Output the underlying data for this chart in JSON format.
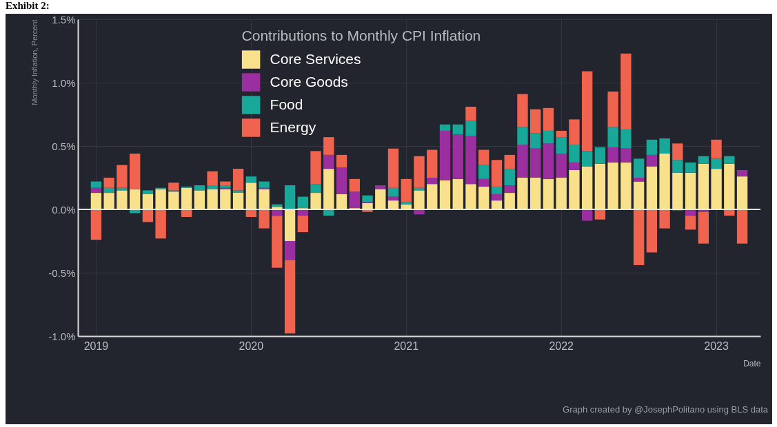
{
  "chart_data": {
    "type": "bar",
    "stacked": true,
    "legend_title": "Contributions to Monthly CPI Inflation",
    "ylabel": "Monthly Inflation, Percent",
    "xlabel": "Date",
    "annotations": [
      "Exhibit 2:",
      "Graph created by @JosephPolitano using BLS data"
    ],
    "categories": [
      "2019",
      null,
      null,
      null,
      null,
      null,
      null,
      null,
      null,
      null,
      null,
      null,
      "2020",
      null,
      null,
      null,
      null,
      null,
      null,
      null,
      null,
      null,
      null,
      null,
      "2021",
      null,
      null,
      null,
      null,
      null,
      null,
      null,
      null,
      null,
      null,
      null,
      "2022",
      null,
      null,
      null,
      null,
      null,
      null,
      null,
      null,
      null,
      null,
      null,
      "2023",
      null,
      null
    ],
    "series": [
      {
        "name": "Core Services",
        "color": "#f9e08a",
        "values": [
          0.13,
          0.13,
          0.15,
          0.16,
          0.12,
          0.16,
          0.14,
          0.17,
          0.15,
          0.16,
          0.16,
          0.13,
          0.21,
          0.16,
          0.02,
          -0.25,
          0.01,
          0.13,
          0.32,
          0.12,
          0.01,
          0.05,
          0.16,
          0.07,
          0.04,
          0.15,
          0.2,
          0.23,
          0.24,
          0.2,
          0.18,
          0.07,
          0.13,
          0.25,
          0.25,
          0.24,
          0.25,
          0.31,
          0.34,
          0.36,
          0.37,
          0.37,
          0.22,
          0.34,
          0.44,
          0.29,
          0.29,
          0.36,
          0.32,
          0.36,
          0.26
        ]
      },
      {
        "name": "Core Goods",
        "color": "#9b2fa0",
        "values": [
          0.04,
          0,
          0,
          0,
          0,
          0,
          0,
          0,
          0,
          0,
          0.01,
          0,
          0,
          0.01,
          -0.05,
          -0.15,
          -0.05,
          0,
          0.11,
          0.21,
          0.13,
          0.01,
          0.03,
          0.03,
          0,
          -0.04,
          0.05,
          0.39,
          0.35,
          0.38,
          0.06,
          0.05,
          0.06,
          0.26,
          0.23,
          0.28,
          0.19,
          0.06,
          -0.09,
          0,
          0.12,
          0.11,
          0.03,
          0.09,
          0,
          -0.01,
          -0.05,
          -0.02,
          0,
          0,
          0.05
        ]
      },
      {
        "name": "Food",
        "color": "#17a89a",
        "values": [
          0.05,
          0.04,
          0.02,
          -0.03,
          0.03,
          0.01,
          0.01,
          0.01,
          0.04,
          0.03,
          0.02,
          0.02,
          0.05,
          0.05,
          0.02,
          0.19,
          0.09,
          0.07,
          -0.05,
          0,
          0,
          0.05,
          0,
          0.07,
          0.02,
          0.02,
          0,
          0.05,
          0.08,
          0.12,
          0.11,
          0.06,
          0.13,
          0.14,
          0.12,
          0.1,
          0.13,
          0.14,
          0.12,
          0.13,
          0.16,
          0.15,
          0.15,
          0.12,
          0.12,
          0.1,
          0.08,
          0.06,
          0.08,
          0.06,
          0
        ]
      },
      {
        "name": "Energy",
        "color": "#f0634f",
        "values": [
          -0.24,
          0.08,
          0.18,
          0.28,
          -0.1,
          -0.23,
          0.06,
          -0.06,
          0,
          0.11,
          0.03,
          0.17,
          -0.06,
          -0.15,
          -0.41,
          -0.58,
          -0.13,
          0.26,
          0.14,
          0.1,
          0.1,
          -0.02,
          0,
          0.31,
          0.18,
          0.25,
          0.22,
          0,
          0,
          0.11,
          0.12,
          0.21,
          0.11,
          0.26,
          0.19,
          0.18,
          0.05,
          0.2,
          0.63,
          -0.08,
          0.28,
          0.6,
          -0.44,
          -0.34,
          -0.15,
          0.13,
          -0.11,
          -0.25,
          0.15,
          -0.05,
          -0.27
        ]
      }
    ],
    "ylim": [
      -1,
      1.5
    ],
    "yticks": [
      {
        "value": -1,
        "label": "-1.0%"
      },
      {
        "value": -0.5,
        "label": "-0.5%"
      },
      {
        "value": 0,
        "label": "0.0%"
      },
      {
        "value": 0.5,
        "label": "0.5%"
      },
      {
        "value": 1,
        "label": "1.0%"
      },
      {
        "value": 1.5,
        "label": "1.5%"
      }
    ],
    "ref_lines": [
      {
        "axis": "y",
        "value": 0,
        "color": "#e6e6e6"
      }
    ],
    "grid": true,
    "legend": "top left"
  }
}
